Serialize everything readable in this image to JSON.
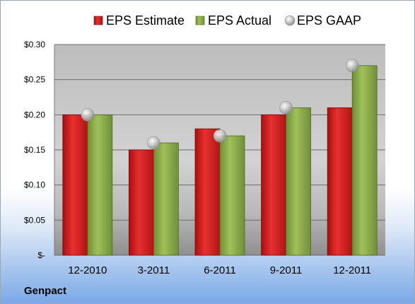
{
  "company": "Genpact",
  "chart_data": {
    "type": "bar",
    "categories": [
      "12-2010",
      "3-2011",
      "6-2011",
      "9-2011",
      "12-2011"
    ],
    "series": [
      {
        "name": "EPS Estimate",
        "kind": "bar",
        "color": "#d42020",
        "values": [
          0.2,
          0.15,
          0.18,
          0.2,
          0.21
        ]
      },
      {
        "name": "EPS Actual",
        "kind": "bar",
        "color": "#8cad4a",
        "values": [
          0.2,
          0.16,
          0.17,
          0.21,
          0.27
        ]
      },
      {
        "name": "EPS GAAP",
        "kind": "marker",
        "color": "#b8b8b8",
        "values": [
          0.2,
          0.16,
          0.17,
          0.21,
          0.27
        ]
      }
    ],
    "ylim": [
      0,
      0.3
    ],
    "yticks": [
      {
        "value": 0.3,
        "label": "$0.30"
      },
      {
        "value": 0.25,
        "label": "$0.25"
      },
      {
        "value": 0.2,
        "label": "$0.20"
      },
      {
        "value": 0.15,
        "label": "$0.15"
      },
      {
        "value": 0.1,
        "label": "$0.10"
      },
      {
        "value": 0.05,
        "label": "$0.05"
      },
      {
        "value": 0,
        "label": "$-"
      }
    ],
    "grid": true,
    "legend_position": "top"
  }
}
